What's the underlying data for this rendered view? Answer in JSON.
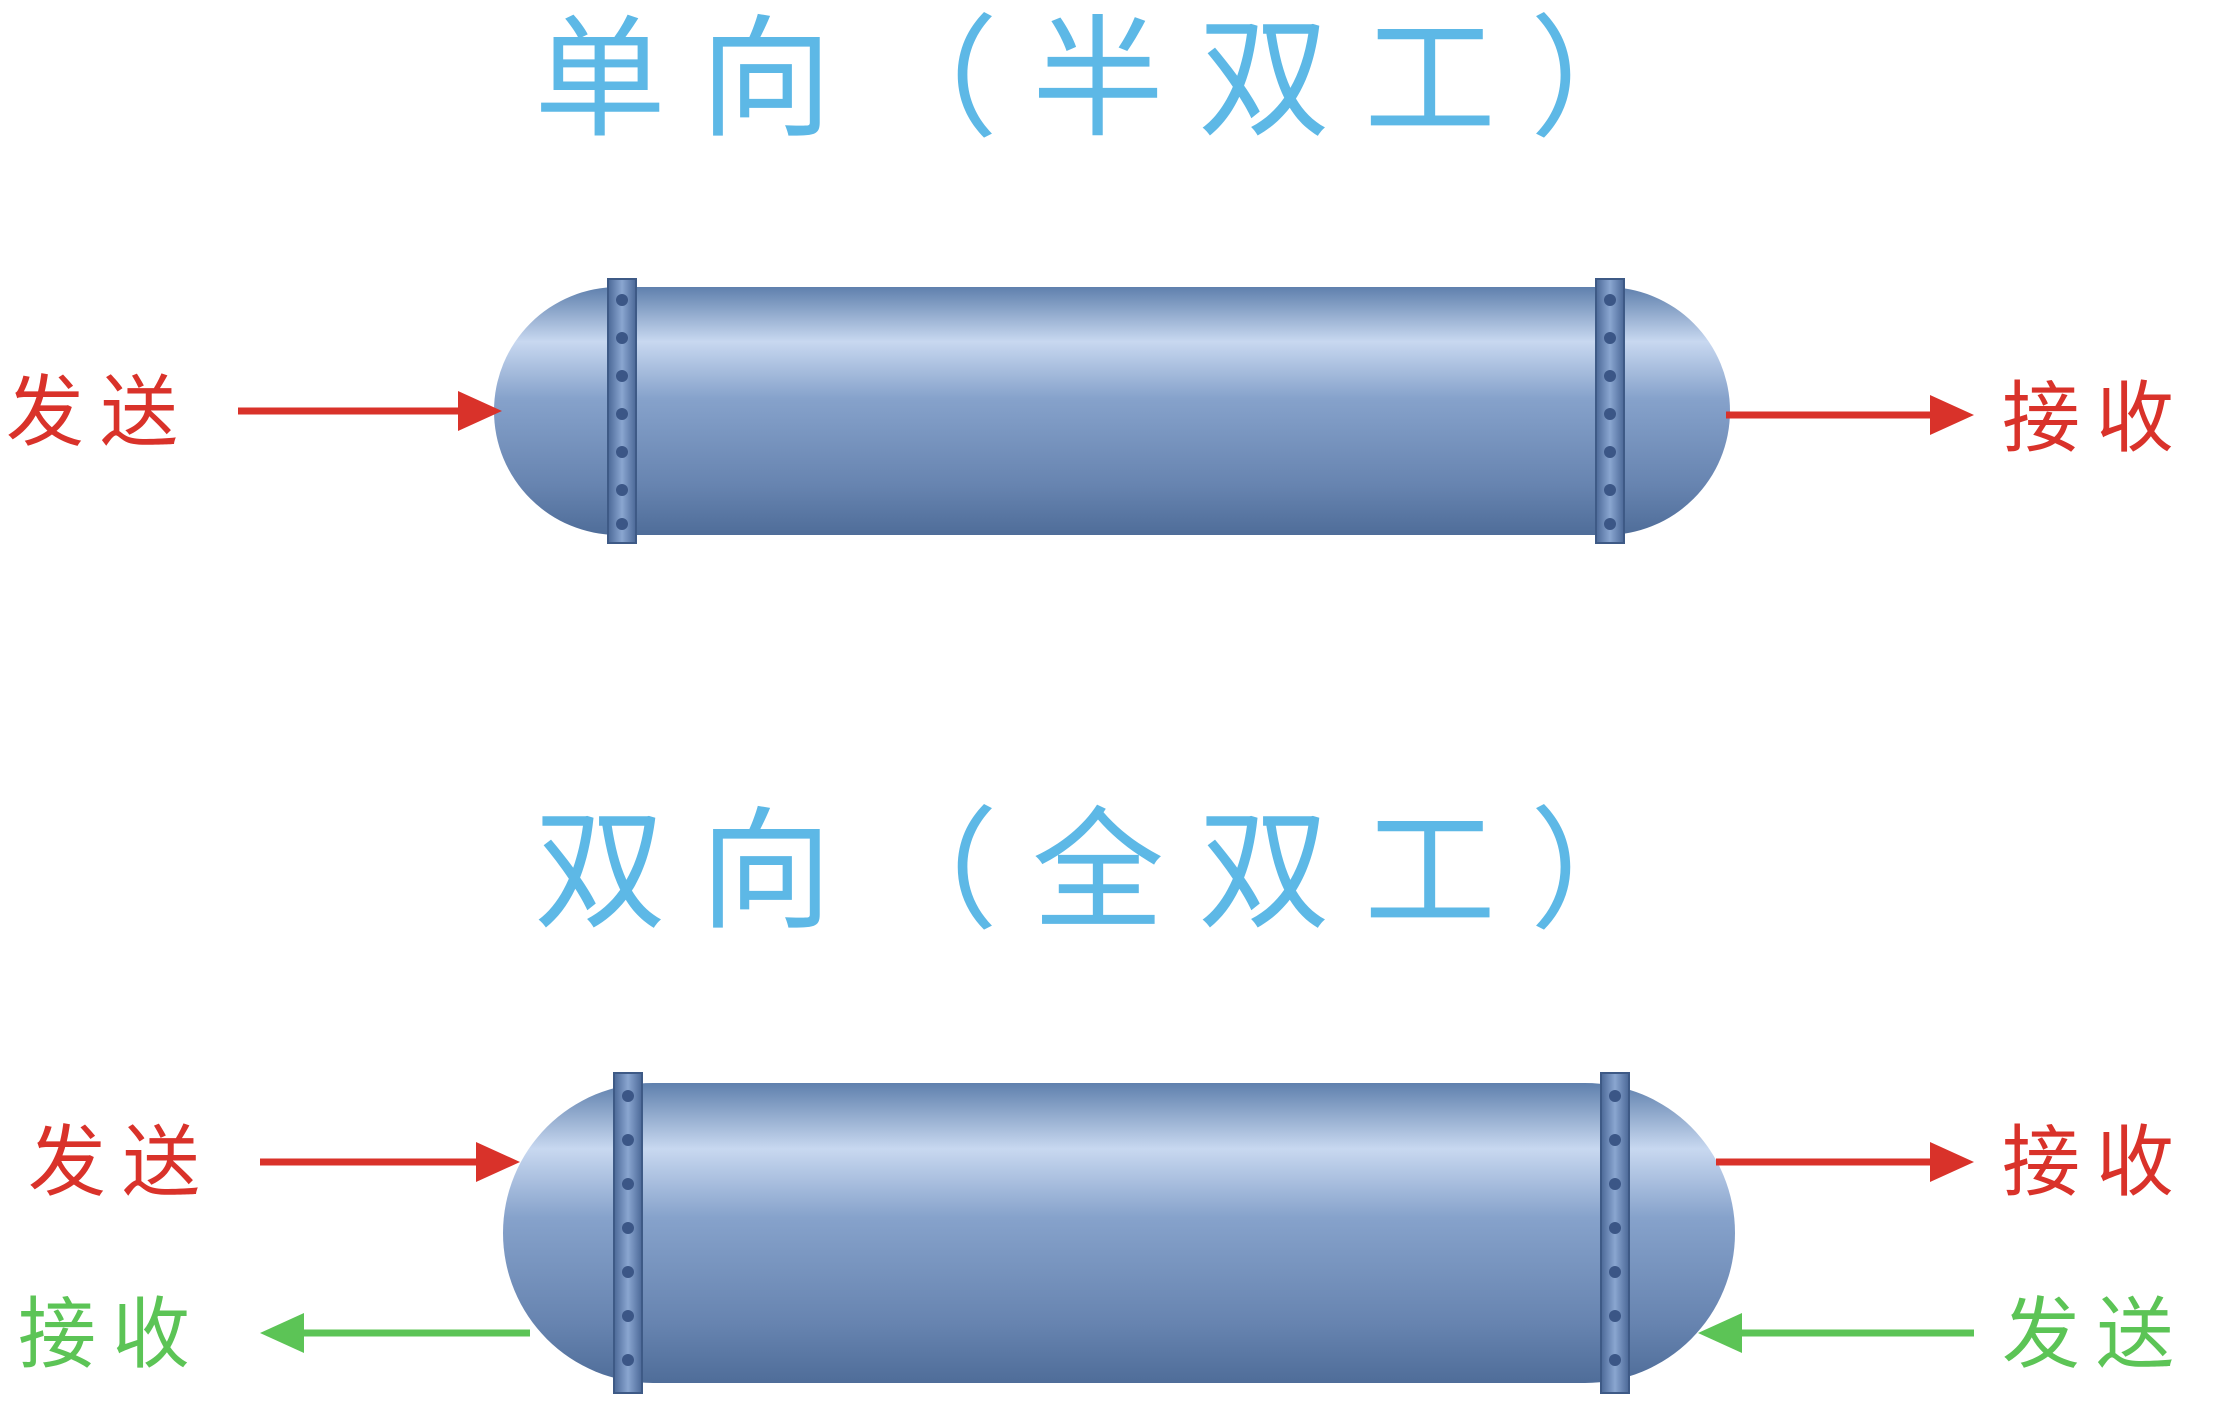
{
  "titles": {
    "simplex": "单向（半双工）",
    "duplex": "双向（全双工）"
  },
  "labels": {
    "send": "发送",
    "receive": "接收"
  },
  "colors": {
    "title": "#5db8e6",
    "send_arrow": "#d9322a",
    "reverse_arrow": "#5cc456",
    "pipe": "#6a8ab8"
  }
}
